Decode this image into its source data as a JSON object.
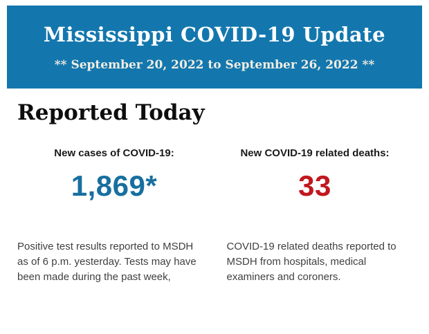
{
  "header": {
    "title": "Mississippi COVID-19 Update",
    "subtitle": "** September 20, 2022 to September 26, 2022 **",
    "colors": {
      "background": "#1377ae",
      "title": "#ffffff",
      "subtitle": "#f1ede3"
    }
  },
  "main": {
    "heading": "Reported Today",
    "stats": [
      {
        "label": "New cases of COVID-19:",
        "value": "1,869*",
        "value_color": "#176f9f",
        "note": "Positive test results reported to MSDH as of 6 p.m. yesterday. Tests may have been made during the past week,"
      },
      {
        "label": "New COVID-19 related deaths:",
        "value": "33",
        "value_color": "#c0181e",
        "note": "COVID-19 related deaths reported to MSDH from hospitals, medical examiners and coroners."
      }
    ]
  }
}
